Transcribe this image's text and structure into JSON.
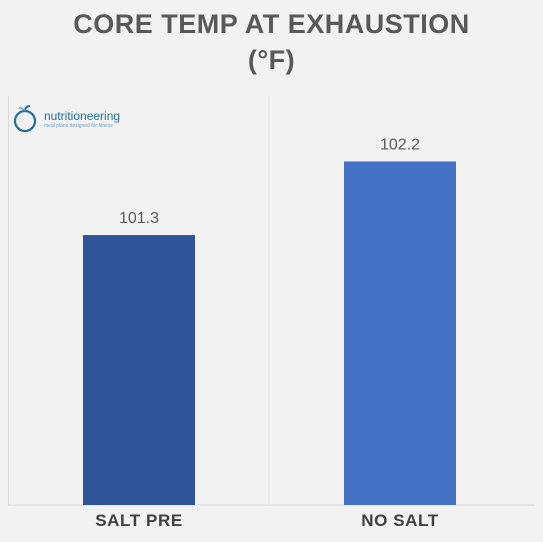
{
  "chart_data": {
    "type": "bar",
    "title_line1": "CORE TEMP AT EXHAUSTION",
    "title_line2": "(°F)",
    "categories": [
      "SALT PRE",
      "NO SALT"
    ],
    "values": [
      101.3,
      102.2
    ],
    "value_labels": [
      "101.3",
      "102.2"
    ],
    "colors": [
      "#2f5597",
      "#4472c4"
    ],
    "xlabel": "",
    "ylabel": "",
    "ylim": [
      98,
      103
    ],
    "grid": false,
    "legend": "none"
  },
  "logo": {
    "name": "nutritioneering",
    "tagline": "meal plans designed for fitness",
    "icon": "apple-logo-icon"
  }
}
